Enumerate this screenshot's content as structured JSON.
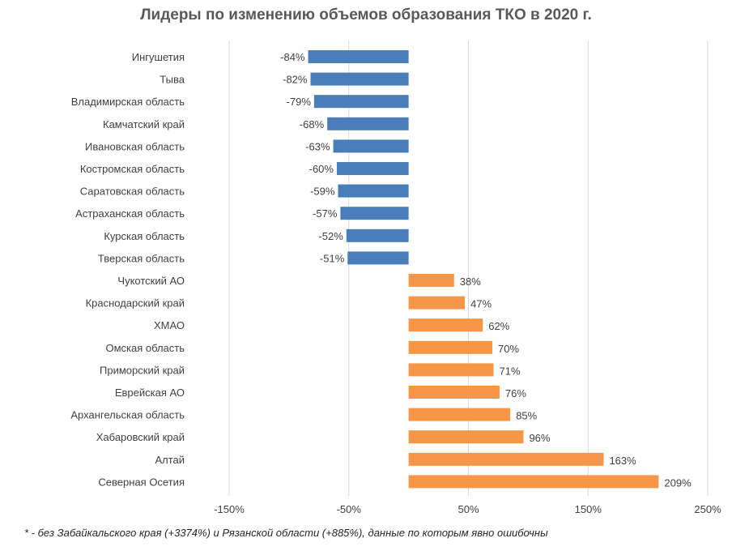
{
  "chart_data": {
    "type": "bar",
    "orientation": "horizontal",
    "title": "Лидеры по изменению объемов образования ТКО в 2020 г.",
    "categories": [
      "Ингушетия",
      "Тыва",
      "Владимирская область",
      "Камчатский край",
      "Ивановская область",
      "Костромская область",
      "Саратовская область",
      "Астраханская область",
      "Курская область",
      "Тверская область",
      "Чукотский АО",
      "Краснодарский край",
      "ХМАО",
      "Омская область",
      "Приморский край",
      "Еврейская АО",
      "Архангельская область",
      "Хабаровский край",
      "Алтай",
      "Северная Осетия"
    ],
    "values": [
      -84,
      -82,
      -79,
      -68,
      -63,
      -60,
      -59,
      -57,
      -52,
      -51,
      38,
      47,
      62,
      70,
      71,
      76,
      85,
      96,
      163,
      209
    ],
    "data_labels": [
      "-84%",
      "-82%",
      "-79%",
      "-68%",
      "-63%",
      "-60%",
      "-59%",
      "-57%",
      "-52%",
      "-51%",
      "38%",
      "47%",
      "62%",
      "70%",
      "71%",
      "76%",
      "85%",
      "96%",
      "163%",
      "209%"
    ],
    "x_ticks": [
      -150,
      -50,
      50,
      150,
      250
    ],
    "x_tick_labels": [
      "-150%",
      "-50%",
      "50%",
      "150%",
      "250%"
    ],
    "xlim": [
      -150,
      250
    ],
    "unit": "%",
    "grid": "vertical",
    "colors": {
      "negative": "#4a7ebb",
      "positive": "#f79646",
      "grid": "#d9d9d9"
    },
    "xlabel": "",
    "ylabel": ""
  },
  "footnote": "* - без Забайкальского края (+3374%) и Рязанской области (+885%), данные по которым явно ошибочны"
}
